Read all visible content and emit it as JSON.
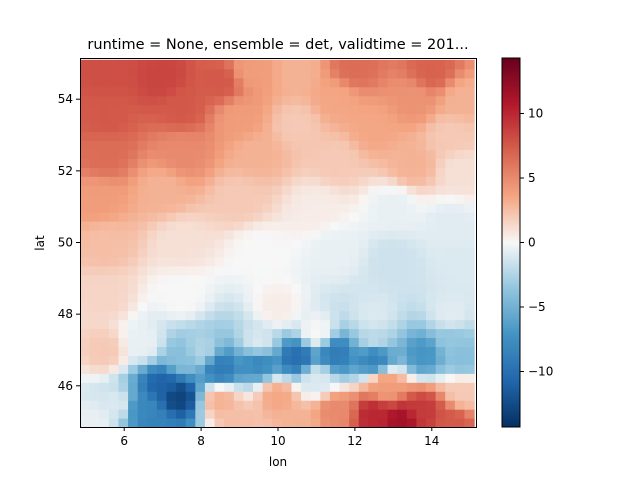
{
  "chart_data": {
    "type": "heatmap",
    "title": "runtime = None, ensemble = det, validtime = 201...",
    "xlabel": "lon",
    "ylabel": "lat",
    "xlim": [
      4.85,
      15.15
    ],
    "ylim": [
      44.85,
      55.15
    ],
    "x_ticks": [
      "6",
      "8",
      "10",
      "12",
      "14"
    ],
    "y_ticks": [
      "46",
      "48",
      "50",
      "52",
      "54"
    ],
    "grid": false,
    "colorbar": {
      "vmin": -14.3,
      "vmax": 14.3,
      "ticks": [
        "−10",
        "−5",
        "0",
        "5",
        "10"
      ],
      "colormap": "RdBu_r"
    },
    "grid_resolution_deg": 0.25,
    "field_description_note": "",
    "anchors": [
      [
        5.5,
        54.8,
        8.0
      ],
      [
        7.0,
        54.6,
        8.5
      ],
      [
        8.5,
        54.5,
        7.5
      ],
      [
        9.3,
        54.8,
        4.0
      ],
      [
        10.5,
        54.8,
        3.0
      ],
      [
        12.0,
        54.9,
        6.5
      ],
      [
        14.0,
        54.8,
        7.0
      ],
      [
        11.5,
        54.0,
        3.5
      ],
      [
        13.5,
        54.0,
        4.5
      ],
      [
        14.8,
        54.0,
        3.0
      ],
      [
        5.5,
        53.5,
        7.5
      ],
      [
        7.5,
        53.8,
        7.5
      ],
      [
        9.0,
        53.5,
        4.0
      ],
      [
        10.5,
        53.3,
        2.0
      ],
      [
        12.5,
        53.2,
        3.5
      ],
      [
        14.5,
        53.0,
        2.0
      ],
      [
        5.5,
        52.5,
        6.5
      ],
      [
        7.5,
        52.5,
        5.0
      ],
      [
        9.5,
        52.5,
        3.0
      ],
      [
        11.5,
        52.3,
        2.0
      ],
      [
        13.5,
        52.2,
        3.0
      ],
      [
        14.8,
        52.0,
        1.0
      ],
      [
        5.3,
        51.2,
        4.0
      ],
      [
        7.0,
        51.5,
        3.0
      ],
      [
        9.0,
        51.2,
        2.0
      ],
      [
        11.0,
        51.0,
        0.5
      ],
      [
        13.0,
        51.0,
        -0.5
      ],
      [
        14.5,
        50.5,
        -0.8
      ],
      [
        5.5,
        50.0,
        2.5
      ],
      [
        7.5,
        50.0,
        1.0
      ],
      [
        9.5,
        49.8,
        0.0
      ],
      [
        11.5,
        49.8,
        -0.5
      ],
      [
        13.0,
        49.5,
        -1.5
      ],
      [
        14.8,
        49.3,
        -1.0
      ],
      [
        5.5,
        48.5,
        1.5
      ],
      [
        7.5,
        48.5,
        0.0
      ],
      [
        10.0,
        48.2,
        0.5
      ],
      [
        12.5,
        48.0,
        -1.0
      ],
      [
        14.5,
        48.0,
        -0.8
      ],
      [
        5.5,
        47.0,
        2.0
      ],
      [
        6.5,
        47.2,
        -0.5
      ],
      [
        8.0,
        47.0,
        -2.5
      ],
      [
        9.5,
        47.2,
        -1.0
      ],
      [
        11.0,
        47.5,
        0.0
      ],
      [
        12.5,
        47.3,
        -2.0
      ],
      [
        14.5,
        47.3,
        -3.5
      ],
      [
        7.5,
        46.8,
        -4.0
      ],
      [
        8.5,
        46.5,
        -9.0
      ],
      [
        9.5,
        46.7,
        -8.0
      ],
      [
        10.5,
        46.8,
        -10.0
      ],
      [
        11.5,
        46.9,
        -9.0
      ],
      [
        12.5,
        46.8,
        -8.5
      ],
      [
        13.8,
        46.9,
        -7.0
      ],
      [
        14.8,
        46.8,
        -4.0
      ],
      [
        7.0,
        46.0,
        -11.0
      ],
      [
        7.4,
        45.7,
        -13.0
      ],
      [
        6.5,
        45.4,
        -8.0
      ],
      [
        6.8,
        45.0,
        -8.5
      ],
      [
        5.8,
        45.5,
        -1.0
      ],
      [
        5.2,
        45.0,
        -0.5
      ],
      [
        8.5,
        45.6,
        3.0
      ],
      [
        10.0,
        45.7,
        3.5
      ],
      [
        11.0,
        46.2,
        -1.0
      ],
      [
        11.5,
        45.3,
        5.0
      ],
      [
        12.5,
        45.2,
        10.0
      ],
      [
        13.2,
        45.0,
        11.5
      ],
      [
        13.8,
        45.3,
        9.0
      ],
      [
        14.5,
        45.0,
        7.5
      ],
      [
        14.8,
        45.8,
        2.0
      ],
      [
        12.8,
        46.0,
        4.0
      ],
      [
        9.0,
        45.0,
        2.5
      ],
      [
        10.5,
        45.0,
        3.0
      ]
    ]
  }
}
